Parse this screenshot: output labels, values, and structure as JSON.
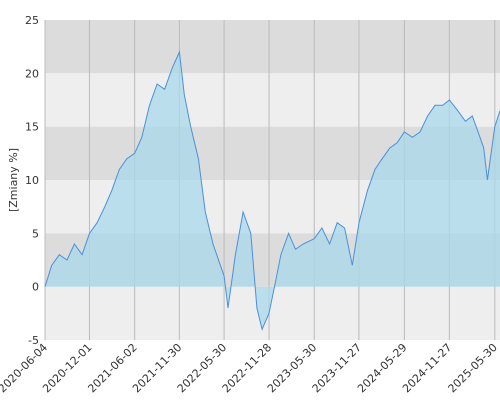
{
  "chart_data": {
    "type": "area",
    "title": "",
    "ylabel": "[Zmiany %]",
    "xlabel": "",
    "ylim": [
      -5,
      25
    ],
    "y_ticks": [
      -5,
      0,
      5,
      10,
      15,
      20,
      25
    ],
    "x_tick_labels": [
      "2020-06-04",
      "2020-12-01",
      "2021-06-02",
      "2021-11-30",
      "2022-05-30",
      "2022-11-28",
      "2023-05-30",
      "2023-11-27",
      "2024-05-29",
      "2024-11-27",
      "2025-05-30"
    ],
    "x_range": [
      "2020-06-04",
      "2025-06-20"
    ],
    "grid": "vertical lines at tick dates, alternating horizontal bands",
    "colors": {
      "line": "#4a90d9",
      "fill": "#a8d8ea",
      "band_dark": "#dcdcdc",
      "band_light": "#eeeeee",
      "grid": "#bbbbbb"
    },
    "series": [
      {
        "x": [
          "2020-06-04",
          "2020-07-01",
          "2020-08-01",
          "2020-09-01",
          "2020-10-01",
          "2020-11-01",
          "2020-12-01",
          "2021-01-01",
          "2021-02-01",
          "2021-03-01",
          "2021-04-01",
          "2021-05-01",
          "2021-06-02",
          "2021-07-01",
          "2021-08-01",
          "2021-09-01",
          "2021-10-01",
          "2021-11-01",
          "2021-11-30",
          "2021-12-20",
          "2022-01-15",
          "2022-02-15",
          "2022-03-15",
          "2022-04-15",
          "2022-05-15",
          "2022-05-30",
          "2022-06-15",
          "2022-07-15",
          "2022-08-15",
          "2022-09-15",
          "2022-10-10",
          "2022-10-31",
          "2022-11-28",
          "2022-12-20",
          "2023-01-15",
          "2023-02-15",
          "2023-03-15",
          "2023-04-15",
          "2023-05-30",
          "2023-06-30",
          "2023-07-31",
          "2023-08-31",
          "2023-09-30",
          "2023-10-31",
          "2023-11-27",
          "2023-12-31",
          "2024-01-31",
          "2024-02-29",
          "2024-03-31",
          "2024-04-30",
          "2024-05-29",
          "2024-06-30",
          "2024-07-31",
          "2024-08-31",
          "2024-09-30",
          "2024-10-31",
          "2024-11-27",
          "2024-12-31",
          "2025-01-31",
          "2025-02-28",
          "2025-03-31",
          "2025-04-15",
          "2025-04-30",
          "2025-05-30",
          "2025-06-20"
        ],
        "y": [
          0,
          2,
          3,
          2.5,
          4,
          3,
          5,
          6,
          7.5,
          9,
          11,
          12,
          12.5,
          14,
          17,
          19,
          18.5,
          20.5,
          22,
          18,
          15,
          12,
          7,
          4,
          2,
          1,
          -2,
          3,
          7,
          5,
          -2,
          -4,
          -2.5,
          0,
          3,
          5,
          3.5,
          4,
          4.5,
          5.5,
          4,
          6,
          5.5,
          2,
          6,
          9,
          11,
          12,
          13,
          13.5,
          14.5,
          14,
          14.5,
          16,
          17,
          17,
          17.5,
          16.5,
          15.5,
          16,
          14,
          13,
          10,
          15,
          16.5
        ]
      }
    ]
  }
}
